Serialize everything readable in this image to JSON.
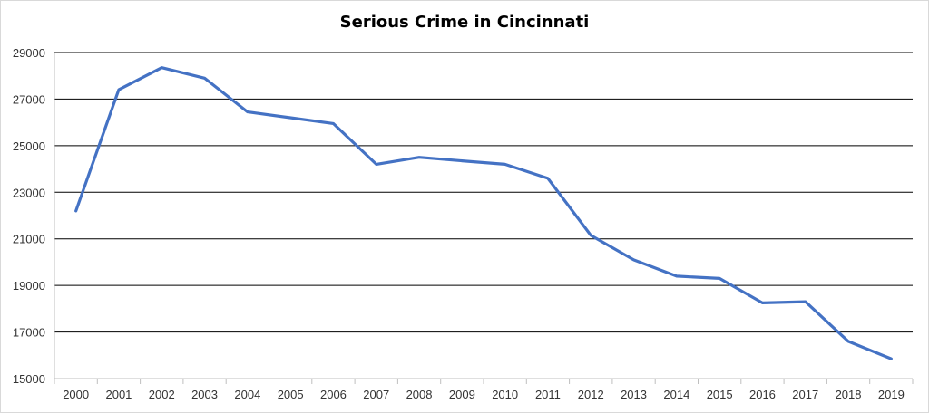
{
  "chart_data": {
    "type": "line",
    "title": "Serious Crime in Cincinnati",
    "xlabel": "",
    "ylabel": "",
    "categories": [
      "2000",
      "2001",
      "2002",
      "2003",
      "2004",
      "2005",
      "2006",
      "2007",
      "2008",
      "2009",
      "2010",
      "2011",
      "2012",
      "2013",
      "2014",
      "2015",
      "2016",
      "2017",
      "2018",
      "2019"
    ],
    "series": [
      {
        "values": [
          22200,
          27400,
          28350,
          27900,
          26450,
          26200,
          25950,
          24200,
          24500,
          24350,
          24200,
          23600,
          21150,
          20100,
          19400,
          19300,
          18250,
          18300,
          16600,
          15850
        ]
      }
    ],
    "ylim": [
      15000,
      29000
    ],
    "yticks": [
      15000,
      17000,
      19000,
      21000,
      23000,
      25000,
      27000,
      29000
    ],
    "grid": true,
    "legend": "none",
    "colors": {
      "line": "#4472C4",
      "gridline": "#000000",
      "axis": "#bfbfbf"
    }
  }
}
